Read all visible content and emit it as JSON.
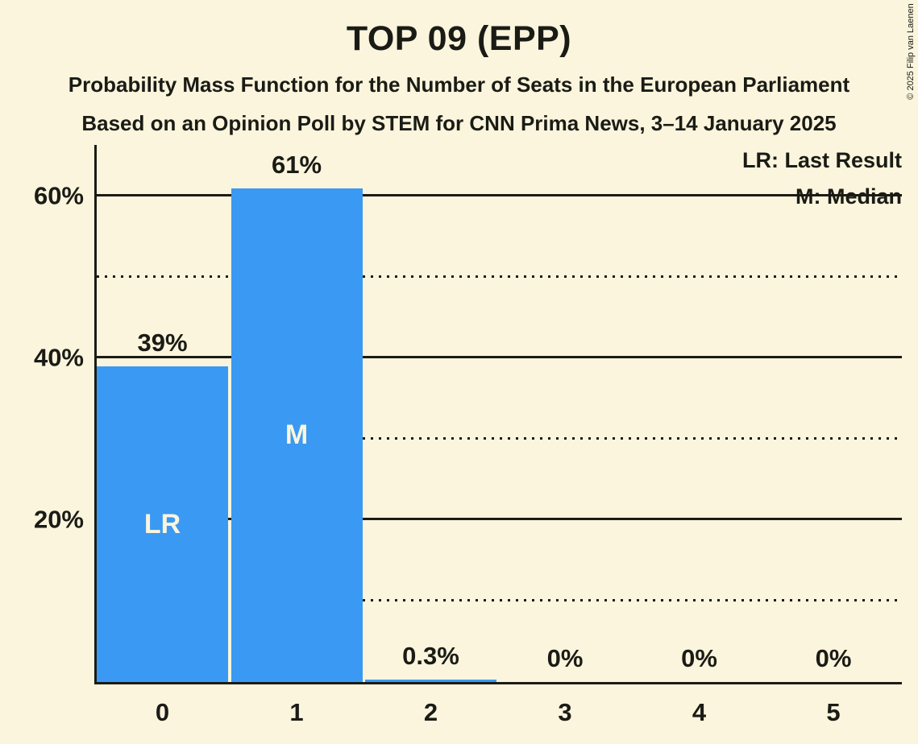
{
  "title": "TOP 09 (EPP)",
  "subtitles": [
    "Probability Mass Function for the Number of Seats in the European Parliament",
    "Based on an Opinion Poll by STEM for CNN Prima News, 3–14 January 2025"
  ],
  "copyright": "© 2025 Filip van Laenen",
  "legend": [
    "LR: Last Result",
    "M: Median"
  ],
  "colors": {
    "background": "#FAF5DC",
    "bar": "#3A99F3",
    "text": "#1B1B16",
    "bar_label": "#FAF5DC",
    "grid": "#1B1B16"
  },
  "chart_data": {
    "type": "bar",
    "title": "TOP 09 (EPP)",
    "categories": [
      "0",
      "1",
      "2",
      "3",
      "4",
      "5"
    ],
    "values": [
      39,
      61,
      0.3,
      0,
      0,
      0
    ],
    "value_labels": [
      "39%",
      "61%",
      "0.3%",
      "0%",
      "0%",
      "0%"
    ],
    "bar_annotations": [
      "LR",
      "M",
      "",
      "",
      "",
      ""
    ],
    "annotation_meanings": {
      "LR": "Last Result",
      "M": "Median"
    },
    "ylim": [
      0,
      66.4
    ],
    "yticks": {
      "values": [
        20,
        40,
        60
      ],
      "labels": [
        "20%",
        "40%",
        "60%"
      ]
    },
    "gridlines": {
      "solid": [
        20,
        40,
        60
      ],
      "dotted": [
        10,
        30,
        50
      ]
    },
    "grid": "on",
    "legend_position": "top-right"
  }
}
